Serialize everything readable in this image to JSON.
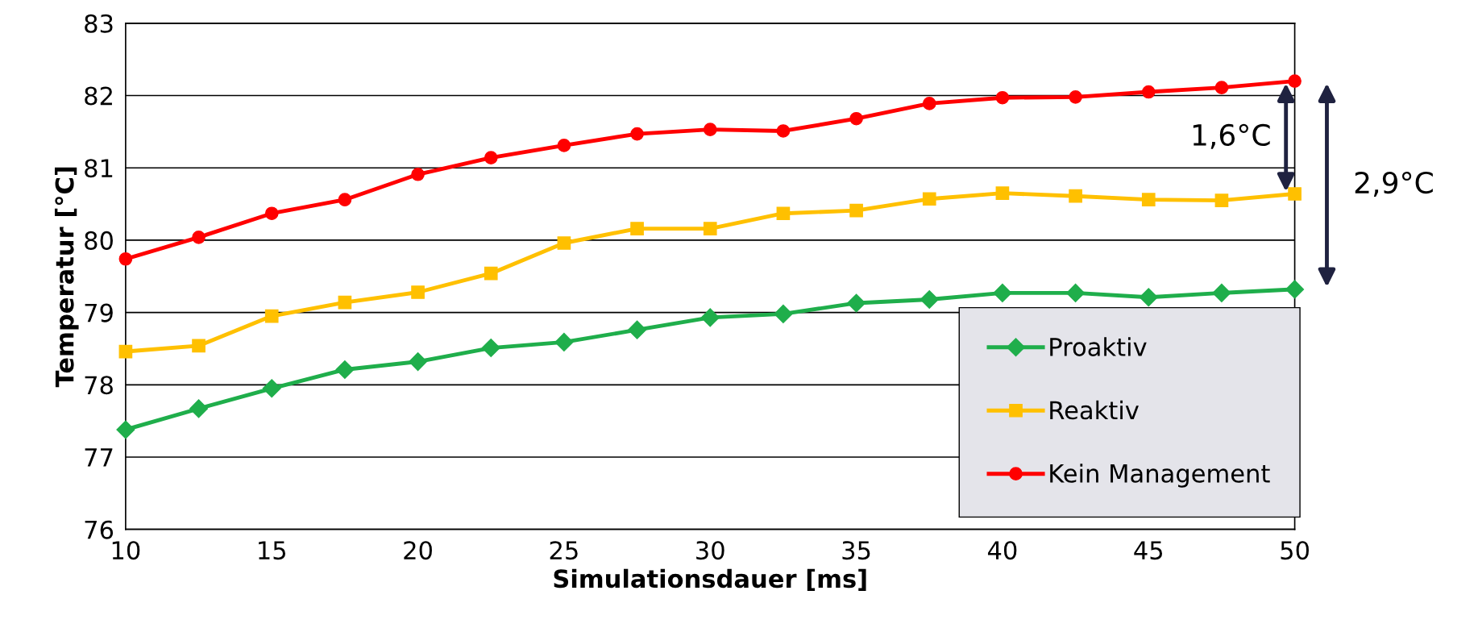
{
  "chart_data": {
    "type": "line",
    "xlabel": "Simulationsdauer [ms]",
    "ylabel": "Temperatur [°C]",
    "x": [
      10,
      12.5,
      15,
      17.5,
      20,
      22.5,
      25,
      27.5,
      30,
      32.5,
      35,
      37.5,
      40,
      42.5,
      45,
      47.5,
      50
    ],
    "series": [
      {
        "name": "Proaktiv",
        "color": "#1fae4b",
        "marker": "diamond",
        "values": [
          77.38,
          77.67,
          77.95,
          78.21,
          78.32,
          78.51,
          78.59,
          78.76,
          78.93,
          78.98,
          79.13,
          79.18,
          79.27,
          79.27,
          79.21,
          79.27,
          79.32
        ]
      },
      {
        "name": "Reaktiv",
        "color": "#ffc000",
        "marker": "square",
        "values": [
          78.46,
          78.54,
          78.95,
          79.14,
          79.28,
          79.54,
          79.96,
          80.16,
          80.16,
          80.37,
          80.41,
          80.57,
          80.65,
          80.61,
          80.56,
          80.55,
          80.64
        ]
      },
      {
        "name": "Kein Management",
        "color": "#ff0000",
        "marker": "circle",
        "values": [
          79.74,
          80.04,
          80.37,
          80.56,
          80.91,
          81.14,
          81.31,
          81.47,
          81.53,
          81.51,
          81.68,
          81.89,
          81.97,
          81.98,
          82.05,
          82.11,
          82.2
        ]
      }
    ],
    "xlim": [
      10,
      50
    ],
    "xticks": [
      10,
      15,
      20,
      25,
      30,
      35,
      40,
      45,
      50
    ],
    "ylim": [
      76,
      83
    ],
    "yticks": [
      76,
      77,
      78,
      79,
      80,
      81,
      82,
      83
    ],
    "grid": "y",
    "legend": "bottom right",
    "line_style": "solid",
    "annotations": [
      "1,6°C",
      "2,9°C"
    ]
  }
}
